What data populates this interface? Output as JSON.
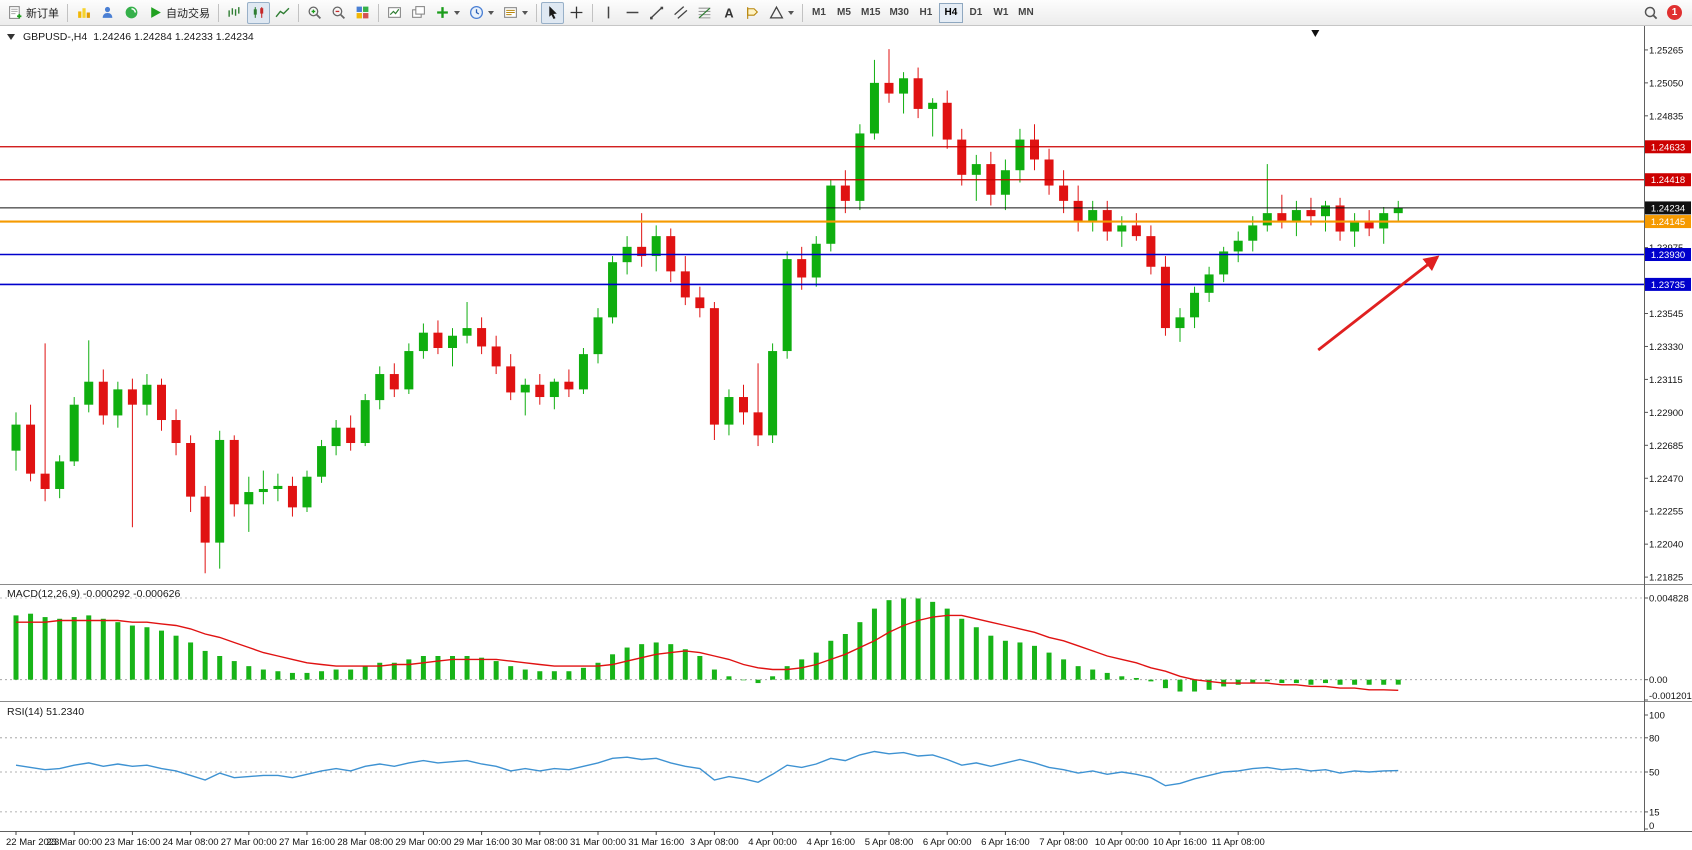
{
  "toolbar": {
    "new_order": "新订单",
    "auto_trading": "自动交易",
    "text_tool_glyph": "A",
    "timeframes": [
      "M1",
      "M5",
      "M15",
      "M30",
      "H1",
      "H4",
      "D1",
      "W1",
      "MN"
    ],
    "active_timeframe": "H4",
    "notification_badge": "1",
    "icon_names": [
      "new-order-icon",
      "market-watch-icon",
      "data-window-icon",
      "navigator-icon",
      "auto-trading-icon",
      "bar-chart-icon",
      "candlestick-chart-icon",
      "line-chart-icon",
      "zoom-in-icon",
      "zoom-out-icon",
      "tile-windows-icon",
      "arrange-windows-icon",
      "cascade-windows-icon",
      "indicators-add-icon",
      "periods-icon",
      "templates-icon",
      "cursor-icon",
      "crosshair-icon",
      "vertical-line-icon",
      "horizontal-line-icon",
      "trendline-icon",
      "channel-icon",
      "fibonacci-icon",
      "text-tool-icon",
      "label-tool-icon",
      "shapes-icon",
      "search-icon",
      "notification-badge"
    ]
  },
  "chart_data": [
    {
      "type": "candlestick",
      "title": "GBPUSD-,H4",
      "ohlc_readout": "1.24246 1.24284 1.24233 1.24234",
      "colors": {
        "up": "#0FAE0F",
        "down": "#E01212"
      },
      "y_range": [
        1.2178,
        1.25395
      ],
      "y_ticks": [
        1.25265,
        1.2505,
        1.24835,
        1.23975,
        1.23545,
        1.2333,
        1.23115,
        1.229,
        1.22685,
        1.2247,
        1.22255,
        1.2204,
        1.21825
      ],
      "horizontal_lines": [
        {
          "value": 1.24633,
          "badge": "1.24633",
          "color": "#CC0000",
          "width": 1.3
        },
        {
          "value": 1.24418,
          "badge": "1.24418",
          "color": "#CC0000",
          "width": 1.3
        },
        {
          "value": 1.24234,
          "badge": "1.24234",
          "color": "#101010",
          "width": 1
        },
        {
          "value": 1.24145,
          "badge": "1.24145",
          "color": "#F59A00",
          "width": 2.2
        },
        {
          "value": 1.2393,
          "badge": "1.23930",
          "color": "#0000CC",
          "width": 1.6
        },
        {
          "value": 1.23735,
          "badge": "1.23735",
          "color": "#0000CC",
          "width": 1.6
        }
      ],
      "current_price": 1.24234,
      "marker": {
        "bar": 89.3
      },
      "arrow_annotation": {
        "from_bar": 89.5,
        "from_price": 1.23307,
        "to_bar": 97.7,
        "to_price": 1.23914,
        "color": "#E02020"
      },
      "x_labels": [
        {
          "bar": 0,
          "label": "22 Mar 2023"
        },
        {
          "bar": 4,
          "label": "23 Mar 00:00"
        },
        {
          "bar": 8,
          "label": "23 Mar 16:00"
        },
        {
          "bar": 12,
          "label": "24 Mar 08:00"
        },
        {
          "bar": 16,
          "label": "27 Mar 00:00"
        },
        {
          "bar": 20,
          "label": "27 Mar 16:00"
        },
        {
          "bar": 24,
          "label": "28 Mar 08:00"
        },
        {
          "bar": 28,
          "label": "29 Mar 00:00"
        },
        {
          "bar": 32,
          "label": "29 Mar 16:00"
        },
        {
          "bar": 36,
          "label": "30 Mar 08:00"
        },
        {
          "bar": 40,
          "label": "31 Mar 00:00"
        },
        {
          "bar": 44,
          "label": "31 Mar 16:00"
        },
        {
          "bar": 48,
          "label": "3 Apr 08:00"
        },
        {
          "bar": 52,
          "label": "4 Apr 00:00"
        },
        {
          "bar": 56,
          "label": "4 Apr 16:00"
        },
        {
          "bar": 60,
          "label": "5 Apr 08:00"
        },
        {
          "bar": 64,
          "label": "6 Apr 00:00"
        },
        {
          "bar": 68,
          "label": "6 Apr 16:00"
        },
        {
          "bar": 72,
          "label": "7 Apr 08:00"
        },
        {
          "bar": 76,
          "label": "10 Apr 00:00"
        },
        {
          "bar": 80,
          "label": "10 Apr 16:00"
        },
        {
          "bar": 84,
          "label": "11 Apr 08:00"
        }
      ],
      "candles": [
        [
          1.2265,
          1.229,
          1.2252,
          1.2282
        ],
        [
          1.2282,
          1.2295,
          1.2245,
          1.225
        ],
        [
          1.225,
          1.2335,
          1.2232,
          1.224
        ],
        [
          1.224,
          1.2262,
          1.2234,
          1.2258
        ],
        [
          1.2258,
          1.23,
          1.2255,
          1.2295
        ],
        [
          1.2295,
          1.2337,
          1.229,
          1.231
        ],
        [
          1.231,
          1.2318,
          1.2282,
          1.2288
        ],
        [
          1.2288,
          1.231,
          1.228,
          1.2305
        ],
        [
          1.2305,
          1.2312,
          1.2215,
          1.2295
        ],
        [
          1.2295,
          1.2315,
          1.2288,
          1.2308
        ],
        [
          1.2308,
          1.2312,
          1.2278,
          1.2285
        ],
        [
          1.2285,
          1.2292,
          1.2262,
          1.227
        ],
        [
          1.227,
          1.2275,
          1.2225,
          1.2235
        ],
        [
          1.2235,
          1.2242,
          1.2185,
          1.2205
        ],
        [
          1.2205,
          1.2278,
          1.2188,
          1.2272
        ],
        [
          1.2272,
          1.2275,
          1.2222,
          1.223
        ],
        [
          1.223,
          1.2248,
          1.2212,
          1.2238
        ],
        [
          1.2238,
          1.2252,
          1.223,
          1.224
        ],
        [
          1.224,
          1.225,
          1.2232,
          1.2242
        ],
        [
          1.2242,
          1.2248,
          1.2222,
          1.2228
        ],
        [
          1.2228,
          1.2252,
          1.2225,
          1.2248
        ],
        [
          1.2248,
          1.2272,
          1.2244,
          1.2268
        ],
        [
          1.2268,
          1.2285,
          1.2262,
          1.228
        ],
        [
          1.228,
          1.2288,
          1.2265,
          1.227
        ],
        [
          1.227,
          1.2302,
          1.2268,
          1.2298
        ],
        [
          1.2298,
          1.232,
          1.2292,
          1.2315
        ],
        [
          1.2315,
          1.2322,
          1.23,
          1.2305
        ],
        [
          1.2305,
          1.2335,
          1.2302,
          1.233
        ],
        [
          1.233,
          1.2348,
          1.2325,
          1.2342
        ],
        [
          1.2342,
          1.235,
          1.2328,
          1.2332
        ],
        [
          1.2332,
          1.2345,
          1.232,
          1.234
        ],
        [
          1.234,
          1.2362,
          1.2335,
          1.2345
        ],
        [
          1.2345,
          1.2352,
          1.2328,
          1.2333
        ],
        [
          1.2333,
          1.234,
          1.2315,
          1.232
        ],
        [
          1.232,
          1.2328,
          1.2298,
          1.2303
        ],
        [
          1.2303,
          1.2312,
          1.2288,
          1.2308
        ],
        [
          1.2308,
          1.2315,
          1.2295,
          1.23
        ],
        [
          1.23,
          1.2312,
          1.2292,
          1.231
        ],
        [
          1.231,
          1.2318,
          1.23,
          1.2305
        ],
        [
          1.2305,
          1.2332,
          1.2302,
          1.2328
        ],
        [
          1.2328,
          1.2358,
          1.2322,
          1.2352
        ],
        [
          1.2352,
          1.2392,
          1.2348,
          1.2388
        ],
        [
          1.2388,
          1.2405,
          1.238,
          1.2398
        ],
        [
          1.2398,
          1.242,
          1.2385,
          1.2392
        ],
        [
          1.2392,
          1.2412,
          1.2382,
          1.2405
        ],
        [
          1.2405,
          1.241,
          1.2375,
          1.2382
        ],
        [
          1.2382,
          1.2392,
          1.236,
          1.2365
        ],
        [
          1.2365,
          1.2372,
          1.2352,
          1.2358
        ],
        [
          1.2358,
          1.2362,
          1.2272,
          1.2282
        ],
        [
          1.2282,
          1.2305,
          1.2275,
          1.23
        ],
        [
          1.23,
          1.2308,
          1.2282,
          1.229
        ],
        [
          1.229,
          1.2322,
          1.2268,
          1.2275
        ],
        [
          1.2275,
          1.2335,
          1.227,
          1.233
        ],
        [
          1.233,
          1.2395,
          1.2325,
          1.239
        ],
        [
          1.239,
          1.2398,
          1.237,
          1.2378
        ],
        [
          1.2378,
          1.2405,
          1.2372,
          1.24
        ],
        [
          1.24,
          1.2442,
          1.2395,
          1.2438
        ],
        [
          1.2438,
          1.2448,
          1.242,
          1.2428
        ],
        [
          1.2428,
          1.2478,
          1.2422,
          1.2472
        ],
        [
          1.2472,
          1.252,
          1.2468,
          1.2505
        ],
        [
          1.2505,
          1.2527,
          1.2492,
          1.2498
        ],
        [
          1.2498,
          1.2512,
          1.2485,
          1.2508
        ],
        [
          1.2508,
          1.2515,
          1.2482,
          1.2488
        ],
        [
          1.2488,
          1.2495,
          1.247,
          1.2492
        ],
        [
          1.2492,
          1.25,
          1.2462,
          1.2468
        ],
        [
          1.2468,
          1.2475,
          1.2438,
          1.2445
        ],
        [
          1.2445,
          1.2458,
          1.2428,
          1.2452
        ],
        [
          1.2452,
          1.246,
          1.2425,
          1.2432
        ],
        [
          1.2432,
          1.2455,
          1.2422,
          1.2448
        ],
        [
          1.2448,
          1.2475,
          1.244,
          1.2468
        ],
        [
          1.2468,
          1.2478,
          1.2448,
          1.2455
        ],
        [
          1.2455,
          1.2462,
          1.2432,
          1.2438
        ],
        [
          1.2438,
          1.2448,
          1.242,
          1.2428
        ],
        [
          1.2428,
          1.2438,
          1.2408,
          1.2415
        ],
        [
          1.2415,
          1.2428,
          1.2408,
          1.2422
        ],
        [
          1.2422,
          1.2428,
          1.2402,
          1.2408
        ],
        [
          1.2408,
          1.2418,
          1.2398,
          1.2412
        ],
        [
          1.2412,
          1.242,
          1.2402,
          1.2405
        ],
        [
          1.2405,
          1.2412,
          1.238,
          1.2385
        ],
        [
          1.2385,
          1.2392,
          1.234,
          1.2345
        ],
        [
          1.2345,
          1.2358,
          1.2336,
          1.2352
        ],
        [
          1.2352,
          1.2372,
          1.2345,
          1.2368
        ],
        [
          1.2368,
          1.2385,
          1.2362,
          1.238
        ],
        [
          1.238,
          1.2398,
          1.2375,
          1.2395
        ],
        [
          1.2395,
          1.2408,
          1.2388,
          1.2402
        ],
        [
          1.2402,
          1.2418,
          1.2395,
          1.2412
        ],
        [
          1.2412,
          1.2452,
          1.2408,
          1.242
        ],
        [
          1.242,
          1.2432,
          1.241,
          1.2415
        ],
        [
          1.2415,
          1.2428,
          1.2405,
          1.2422
        ],
        [
          1.2422,
          1.243,
          1.2412,
          1.2418
        ],
        [
          1.2418,
          1.2428,
          1.2408,
          1.2425
        ],
        [
          1.2425,
          1.243,
          1.2402,
          1.2408
        ],
        [
          1.2408,
          1.242,
          1.2398,
          1.2415
        ],
        [
          1.2415,
          1.2422,
          1.2405,
          1.241
        ],
        [
          1.241,
          1.2424,
          1.24,
          1.242
        ],
        [
          1.242,
          1.2428,
          1.2415,
          1.24234
        ]
      ]
    },
    {
      "type": "bar",
      "label": "MACD(12,26,9) -0.000292 -0.000626",
      "y_ticks": [
        0.004828,
        0,
        -0.001201
      ],
      "y_tick_labels": [
        "0.004828",
        "0.00",
        "-0.001201"
      ],
      "scale": 0.0001,
      "colors": {
        "histogram": "#18B418",
        "signal": "#E01212"
      },
      "histogram": [
        38,
        39,
        37,
        36,
        37,
        38,
        36,
        34,
        32,
        31,
        29,
        26,
        22,
        17,
        14,
        11,
        8,
        6,
        5,
        4,
        4,
        5,
        6,
        6,
        8,
        10,
        10,
        12,
        14,
        14,
        14,
        14,
        13,
        11,
        8,
        6,
        5,
        5,
        5,
        7,
        10,
        15,
        19,
        21,
        22,
        21,
        18,
        14,
        6,
        2,
        0,
        -2,
        2,
        8,
        12,
        16,
        23,
        27,
        34,
        42,
        47,
        48,
        48,
        46,
        42,
        36,
        31,
        26,
        23,
        22,
        20,
        16,
        12,
        8,
        6,
        4,
        2,
        1,
        -1,
        -5,
        -7,
        -7,
        -6,
        -4,
        -3,
        -2,
        -1,
        -2,
        -2,
        -3,
        -2,
        -3,
        -3,
        -3,
        -3,
        -2.92
      ],
      "signal": [
        34,
        34,
        34,
        35,
        35,
        35,
        35,
        35,
        34,
        34,
        33,
        32,
        30,
        27,
        25,
        22,
        19,
        16,
        14,
        12,
        10,
        9,
        8,
        8,
        8,
        8,
        9,
        9,
        10,
        11,
        12,
        12,
        12,
        12,
        11,
        10,
        9,
        8,
        8,
        8,
        8,
        9,
        11,
        13,
        15,
        16,
        17,
        16,
        14,
        12,
        9,
        7,
        6,
        6,
        7,
        9,
        12,
        15,
        19,
        23,
        28,
        32,
        35,
        37,
        38,
        38,
        36,
        34,
        32,
        30,
        28,
        25,
        23,
        20,
        17,
        14,
        12,
        10,
        7,
        5,
        2,
        0,
        -1,
        -2,
        -2,
        -2,
        -2,
        -3,
        -3,
        -4,
        -4,
        -5,
        -5,
        -6,
        -6,
        -6.26
      ]
    },
    {
      "type": "line",
      "label": "RSI(14) 51.2340",
      "color": "#3E92D2",
      "levels": [
        80,
        50,
        15
      ],
      "y_tick_values": [
        100,
        80,
        50,
        15,
        0
      ],
      "y_tick_labels": [
        "100",
        "80",
        "50",
        "15",
        "0"
      ],
      "values": [
        56,
        54,
        52,
        53,
        56,
        58,
        55,
        57,
        55,
        56,
        53,
        51,
        47,
        43,
        49,
        45,
        46,
        47,
        47,
        45,
        48,
        51,
        53,
        51,
        55,
        57,
        55,
        58,
        60,
        58,
        59,
        60,
        57,
        55,
        51,
        53,
        51,
        53,
        52,
        55,
        58,
        62,
        63,
        61,
        62,
        58,
        55,
        53,
        43,
        46,
        44,
        41,
        48,
        56,
        54,
        57,
        62,
        60,
        65,
        68,
        66,
        67,
        64,
        65,
        61,
        56,
        58,
        55,
        58,
        61,
        58,
        54,
        52,
        49,
        51,
        48,
        50,
        48,
        45,
        38,
        40,
        44,
        47,
        50,
        51,
        53,
        54,
        52,
        53,
        51,
        52,
        49,
        51,
        50,
        51,
        51.234
      ]
    }
  ]
}
